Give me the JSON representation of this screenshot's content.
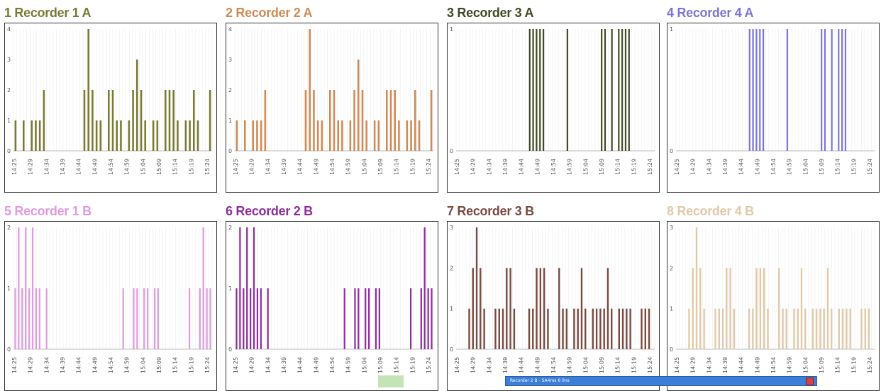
{
  "window": {
    "taskbar_title": "Recorder 2 B - SA4ms 6 0ns"
  },
  "chart_data": [
    {
      "type": "bar",
      "title": "1 Recorder 1 A",
      "color": "#7a7a35",
      "ylim": [
        0,
        4
      ],
      "yticks": [
        "0",
        "1",
        "2",
        "3",
        "4"
      ],
      "xticks": [
        "14:25",
        "14:29",
        "14:34",
        "14:39",
        "14:44",
        "14:49",
        "14:54",
        "14:59",
        "15:04",
        "15:09",
        "15:14",
        "15:19",
        "15:24"
      ],
      "values": [
        1,
        0,
        1,
        0,
        1,
        1,
        1,
        2,
        0,
        0,
        0,
        0,
        0,
        0,
        0,
        0,
        0,
        2,
        4,
        2,
        1,
        1,
        0,
        2,
        2,
        1,
        1,
        0,
        1,
        2,
        3,
        2,
        1,
        0,
        1,
        1,
        0,
        2,
        2,
        2,
        1,
        0,
        1,
        1,
        2,
        1,
        0,
        0,
        2
      ]
    },
    {
      "type": "bar",
      "title": "2 Recorder 2 A",
      "color": "#d08a55",
      "ylim": [
        0,
        4
      ],
      "yticks": [
        "0",
        "1",
        "2",
        "3",
        "4"
      ],
      "xticks": [
        "14:25",
        "14:29",
        "14:34",
        "14:39",
        "14:44",
        "14:49",
        "14:54",
        "14:59",
        "15:04",
        "15:09",
        "15:14",
        "15:19",
        "15:24"
      ],
      "values": [
        1,
        0,
        1,
        0,
        1,
        1,
        1,
        2,
        0,
        0,
        0,
        0,
        0,
        0,
        0,
        0,
        0,
        2,
        4,
        2,
        1,
        1,
        0,
        2,
        2,
        1,
        1,
        0,
        1,
        2,
        3,
        2,
        1,
        0,
        1,
        1,
        0,
        2,
        2,
        2,
        1,
        0,
        1,
        1,
        2,
        1,
        0,
        0,
        2
      ]
    },
    {
      "type": "bar",
      "title": "3 Recorder 3 A",
      "color": "#3f4a24",
      "ylim": [
        0,
        1
      ],
      "yticks": [
        "0",
        "1"
      ],
      "xticks": [
        "14:25",
        "14:29",
        "14:34",
        "14:39",
        "14:44",
        "14:49",
        "14:54",
        "14:59",
        "15:04",
        "15:09",
        "15:14",
        "15:19",
        "15:24"
      ],
      "values": [
        0,
        0,
        0,
        0,
        0,
        0,
        0,
        0,
        0,
        0,
        0,
        0,
        0,
        0,
        0,
        0,
        0,
        0,
        0,
        0,
        0,
        1,
        1,
        1,
        1,
        1,
        0,
        0,
        0,
        0,
        0,
        0,
        1,
        0,
        0,
        0,
        0,
        0,
        0,
        0,
        0,
        0,
        1,
        1,
        0,
        1,
        0,
        1,
        1,
        1,
        1,
        0,
        0,
        0,
        0,
        0,
        0,
        0
      ]
    },
    {
      "type": "bar",
      "title": "4 Recorder 4 A",
      "color": "#7d74d6",
      "ylim": [
        0,
        1
      ],
      "yticks": [
        "0",
        "1"
      ],
      "xticks": [
        "14:25",
        "14:29",
        "14:34",
        "14:39",
        "14:44",
        "14:49",
        "14:54",
        "14:59",
        "15:04",
        "15:09",
        "15:14",
        "15:19",
        "15:24"
      ],
      "values": [
        0,
        0,
        0,
        0,
        0,
        0,
        0,
        0,
        0,
        0,
        0,
        0,
        0,
        0,
        0,
        0,
        0,
        0,
        0,
        0,
        0,
        1,
        1,
        1,
        1,
        1,
        0,
        0,
        0,
        0,
        0,
        0,
        1,
        0,
        0,
        0,
        0,
        0,
        0,
        0,
        0,
        0,
        1,
        1,
        0,
        1,
        0,
        1,
        1,
        1,
        0,
        0,
        0,
        0,
        0,
        0,
        0,
        0
      ]
    },
    {
      "type": "bar",
      "title": "5 Recorder 1 B",
      "color": "#e09ae0",
      "ylim": [
        0,
        2
      ],
      "yticks": [
        "0",
        "1",
        "2"
      ],
      "xticks": [
        "14:25",
        "14:29",
        "14:34",
        "14:39",
        "14:44",
        "14:49",
        "14:54",
        "14:59",
        "15:04",
        "15:09",
        "15:14",
        "15:19",
        "15:24"
      ],
      "values": [
        1,
        2,
        1,
        2,
        1,
        2,
        1,
        1,
        0,
        1,
        0,
        0,
        0,
        0,
        0,
        0,
        0,
        0,
        0,
        0,
        0,
        0,
        0,
        0,
        0,
        0,
        0,
        0,
        0,
        0,
        0,
        1,
        0,
        0,
        1,
        1,
        0,
        1,
        1,
        0,
        1,
        1,
        0,
        0,
        0,
        0,
        0,
        0,
        0,
        0,
        1,
        0,
        0,
        1,
        2,
        1,
        1
      ]
    },
    {
      "type": "bar",
      "title": "6 Recorder 2 B",
      "color": "#8e2e9c",
      "ylim": [
        0,
        2
      ],
      "yticks": [
        "0",
        "1",
        "2"
      ],
      "xticks": [
        "14:25",
        "14:29",
        "14:34",
        "14:39",
        "14:44",
        "14:49",
        "14:54",
        "14:59",
        "15:04",
        "15:09",
        "15:14",
        "15:19",
        "15:24"
      ],
      "values": [
        1,
        2,
        1,
        2,
        1,
        2,
        1,
        1,
        0,
        1,
        0,
        0,
        0,
        0,
        0,
        0,
        0,
        0,
        0,
        0,
        0,
        0,
        0,
        0,
        0,
        0,
        0,
        0,
        0,
        0,
        0,
        1,
        0,
        0,
        1,
        1,
        0,
        1,
        1,
        0,
        1,
        1,
        0,
        0,
        0,
        0,
        0,
        0,
        0,
        0,
        1,
        0,
        0,
        1,
        2,
        1,
        1
      ]
    },
    {
      "type": "bar",
      "title": "7 Recorder 3 B",
      "color": "#7a4a40",
      "ylim": [
        0,
        3
      ],
      "yticks": [
        "0",
        "1",
        "2",
        "3"
      ],
      "xticks": [
        "14:25",
        "14:29",
        "14:34",
        "14:39",
        "14:44",
        "14:49",
        "14:54",
        "14:59",
        "15:04",
        "15:09",
        "15:14",
        "15:19",
        "15:24"
      ],
      "values": [
        0,
        0,
        0,
        1,
        2,
        3,
        2,
        1,
        0,
        0,
        1,
        1,
        1,
        2,
        2,
        1,
        0,
        0,
        0,
        1,
        1,
        2,
        2,
        2,
        1,
        0,
        0,
        2,
        1,
        1,
        0,
        1,
        1,
        2,
        1,
        0,
        1,
        1,
        1,
        1,
        2,
        1,
        0,
        1,
        1,
        1,
        1,
        0,
        0,
        1,
        1,
        1,
        0
      ]
    },
    {
      "type": "bar",
      "title": "8 Recorder 4 B",
      "color": "#e1c9a8",
      "ylim": [
        0,
        3
      ],
      "yticks": [
        "0",
        "1",
        "2",
        "3"
      ],
      "xticks": [
        "14:25",
        "14:29",
        "14:34",
        "14:39",
        "14:44",
        "14:49",
        "14:54",
        "14:59",
        "15:04",
        "15:09",
        "15:14",
        "15:19",
        "15:24"
      ],
      "values": [
        0,
        0,
        0,
        1,
        2,
        3,
        2,
        1,
        0,
        0,
        1,
        1,
        1,
        2,
        2,
        1,
        0,
        0,
        0,
        1,
        1,
        2,
        2,
        2,
        1,
        0,
        0,
        2,
        1,
        1,
        0,
        1,
        1,
        2,
        1,
        0,
        1,
        1,
        1,
        1,
        2,
        1,
        0,
        1,
        1,
        1,
        1,
        0,
        0,
        1,
        1,
        1,
        0
      ]
    }
  ]
}
